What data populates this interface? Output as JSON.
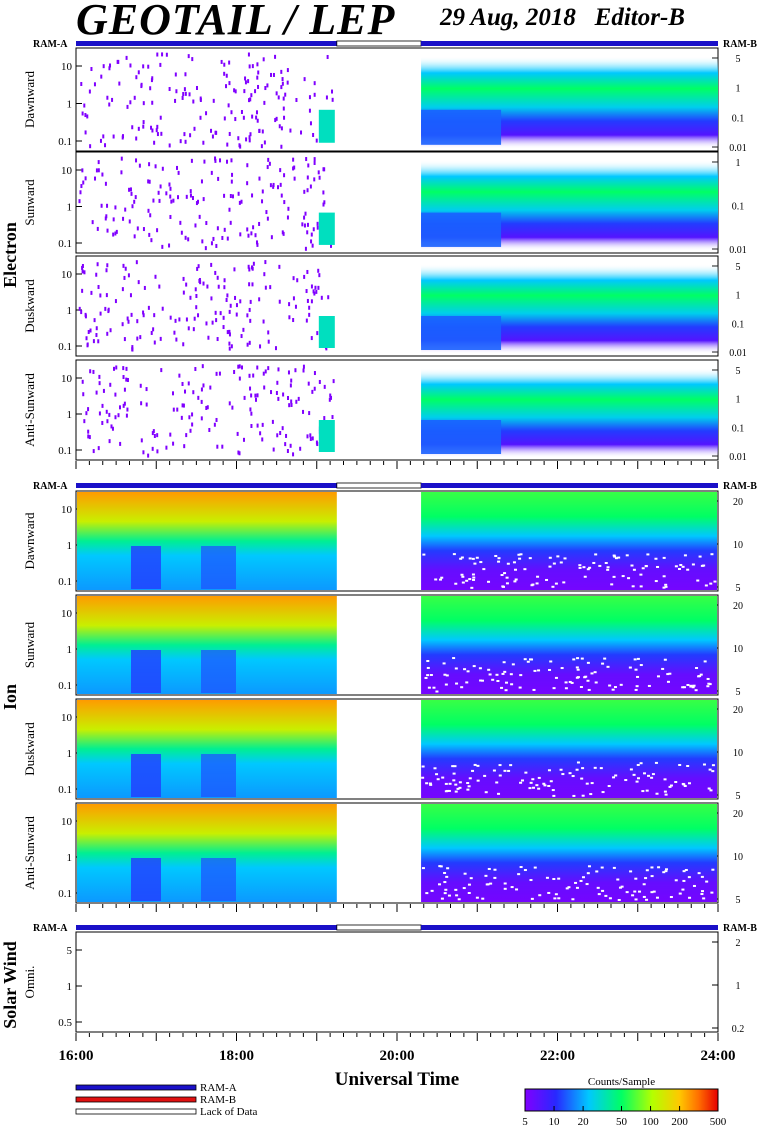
{
  "header": {
    "title": "GEOTAIL / LEP",
    "date": "29 Aug, 2018",
    "editor": "Editor-B"
  },
  "chart_data": {
    "type": "heatmap",
    "xlabel": "Universal Time",
    "x_ticks": [
      "16:00",
      "18:00",
      "20:00",
      "22:00",
      "24:00"
    ],
    "x_range_hours": [
      16,
      24
    ],
    "data_gap_hours": [
      19.25,
      20.3
    ],
    "ram_a_label": "RAM-A",
    "ram_b_label": "RAM-B",
    "groups": [
      {
        "name": "Electron",
        "panels": [
          {
            "label": "Dawnward",
            "left_ticks": [
              "10",
              "1",
              "0.1"
            ],
            "right_ticks": [
              "5",
              "1",
              "0.1",
              "0.01"
            ]
          },
          {
            "label": "Sunward",
            "left_ticks": [
              "10",
              "1",
              "0.1"
            ],
            "right_ticks": [
              "1",
              "0.1",
              "0.01"
            ]
          },
          {
            "label": "Duskward",
            "left_ticks": [
              "10",
              "1",
              "0.1"
            ],
            "right_ticks": [
              "5",
              "1",
              "0.1",
              "0.01"
            ]
          },
          {
            "label": "Anti-Sunward",
            "left_ticks": [
              "10",
              "1",
              "0.1"
            ],
            "right_ticks": [
              "5",
              "1",
              "0.1",
              "0.01"
            ]
          }
        ]
      },
      {
        "name": "Ion",
        "panels": [
          {
            "label": "Dawnward",
            "left_ticks": [
              "10",
              "1",
              "0.1"
            ],
            "right_ticks": [
              "20",
              "10",
              "5"
            ]
          },
          {
            "label": "Sunward",
            "left_ticks": [
              "10",
              "1",
              "0.1"
            ],
            "right_ticks": [
              "20",
              "10",
              "5"
            ]
          },
          {
            "label": "Duskward",
            "left_ticks": [
              "10",
              "1",
              "0.1"
            ],
            "right_ticks": [
              "20",
              "10",
              "5"
            ]
          },
          {
            "label": "Anti-Sunward",
            "left_ticks": [
              "10",
              "1",
              "0.1"
            ],
            "right_ticks": [
              "20",
              "10",
              "5"
            ]
          }
        ]
      },
      {
        "name": "Solar Wind",
        "panels": [
          {
            "label": "Omni.",
            "left_ticks": [
              "5",
              "1",
              "0.5"
            ],
            "right_ticks": [
              "2",
              "1",
              "0.2"
            ]
          }
        ]
      }
    ],
    "legend": {
      "items": [
        "RAM-A",
        "RAM-B",
        "Lack of Data"
      ],
      "colors": [
        "#1a10c8",
        "#e01010",
        "#ffffff"
      ]
    },
    "colorbar": {
      "title": "Counts/Sample",
      "ticks": [
        "5",
        "10",
        "20",
        "50",
        "100",
        "200",
        "500"
      ],
      "scale": "log",
      "range": [
        5,
        500
      ]
    }
  }
}
